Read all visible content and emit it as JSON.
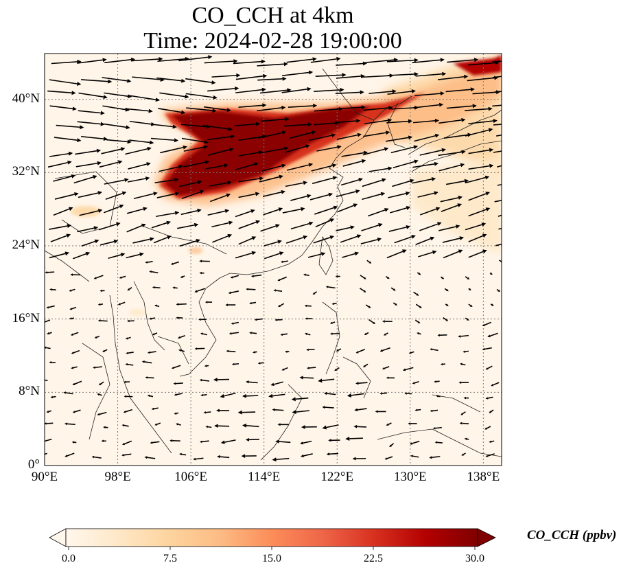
{
  "title": {
    "line1": "CO_CCH at 4km",
    "line2": "Time: 2024-02-28 19:00:00"
  },
  "map": {
    "extent": {
      "lon_min": 90,
      "lon_max": 140,
      "lat_min": 0,
      "lat_max": 45
    },
    "lon_ticks": [
      {
        "value": 90,
        "label": "90°E"
      },
      {
        "value": 98,
        "label": "98°E"
      },
      {
        "value": 106,
        "label": "106°E"
      },
      {
        "value": 114,
        "label": "114°E"
      },
      {
        "value": 122,
        "label": "122°E"
      },
      {
        "value": 130,
        "label": "130°E"
      },
      {
        "value": 138,
        "label": "138°E"
      }
    ],
    "lat_ticks": [
      {
        "value": 0,
        "label": "0°"
      },
      {
        "value": 8,
        "label": "8°N"
      },
      {
        "value": 16,
        "label": "16°N"
      },
      {
        "value": 24,
        "label": "24°N"
      },
      {
        "value": 32,
        "label": "32°N"
      },
      {
        "value": 40,
        "label": "40°N"
      }
    ],
    "gridlines": true,
    "background_color": "#fff5e8",
    "plume_color": "#8b0000"
  },
  "colorbar": {
    "label": "CO_CCH (ppbv)",
    "min": 0,
    "max": 30,
    "extend": "both",
    "colormap": "OrRd",
    "ticks": [
      "0.0",
      "7.5",
      "15.0",
      "22.5",
      "30.0"
    ],
    "colors": [
      "#fff7ec",
      "#fee8c8",
      "#fdd49e",
      "#fdbb84",
      "#fc8d59",
      "#ef6548",
      "#d7301f",
      "#b30000",
      "#7f0000"
    ]
  }
}
